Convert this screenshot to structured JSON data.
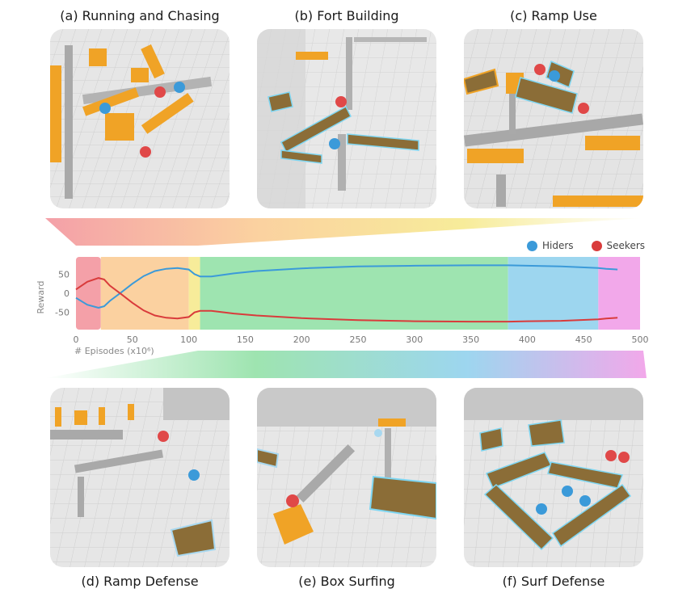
{
  "panels": {
    "a": "(a) Running and Chasing",
    "b": "(b) Fort Building",
    "c": "(c) Ramp Use",
    "d": "(d) Ramp Defense",
    "e": "(e) Box Surfing",
    "f": "(f) Surf Defense"
  },
  "colors": {
    "hiders": "#3b9ad9",
    "seekers": "#d93b3b",
    "phase_a": "#f4a0a8",
    "phase_b": "#fbd1a0",
    "phase_c": "#f7ec9a",
    "phase_d": "#9ee4b0",
    "phase_e": "#9dd6ef",
    "phase_f": "#f2a8ea"
  },
  "chart_data": {
    "type": "line",
    "ylabel": "Reward",
    "xlabel": "# Episodes (x10⁶)",
    "xlim": [
      0,
      500
    ],
    "ylim": [
      -95,
      95
    ],
    "xticks": [
      0,
      50,
      100,
      150,
      200,
      250,
      300,
      350,
      400,
      450,
      500
    ],
    "yticks": [
      50,
      0,
      -50
    ],
    "legend": [
      "Hiders",
      "Seekers"
    ],
    "legend_position": "top-right",
    "phases": [
      {
        "label": "a",
        "x0": 0,
        "x1": 22
      },
      {
        "label": "b",
        "x0": 22,
        "x1": 100
      },
      {
        "label": "c",
        "x0": 100,
        "x1": 110
      },
      {
        "label": "d",
        "x0": 110,
        "x1": 383
      },
      {
        "label": "e",
        "x0": 383,
        "x1": 463
      },
      {
        "label": "f",
        "x0": 463,
        "x1": 500
      }
    ],
    "series": [
      {
        "name": "Hiders",
        "x": [
          0,
          10,
          20,
          25,
          30,
          40,
          50,
          60,
          70,
          80,
          90,
          100,
          105,
          110,
          120,
          140,
          160,
          200,
          250,
          300,
          350,
          383,
          400,
          430,
          463,
          470,
          480
        ],
        "y": [
          -12,
          -30,
          -38,
          -34,
          -20,
          2,
          25,
          45,
          58,
          64,
          66,
          62,
          50,
          44,
          44,
          52,
          58,
          65,
          70,
          72,
          73,
          73,
          72,
          70,
          66,
          64,
          62
        ]
      },
      {
        "name": "Seekers",
        "x": [
          0,
          10,
          20,
          25,
          30,
          40,
          50,
          60,
          70,
          80,
          90,
          100,
          105,
          110,
          120,
          140,
          160,
          200,
          250,
          300,
          350,
          383,
          400,
          430,
          463,
          470,
          480
        ],
        "y": [
          10,
          30,
          40,
          36,
          20,
          -2,
          -25,
          -45,
          -58,
          -64,
          -66,
          -62,
          -50,
          -46,
          -46,
          -53,
          -58,
          -65,
          -70,
          -73,
          -74,
          -74,
          -73,
          -72,
          -68,
          -66,
          -64
        ]
      }
    ]
  }
}
